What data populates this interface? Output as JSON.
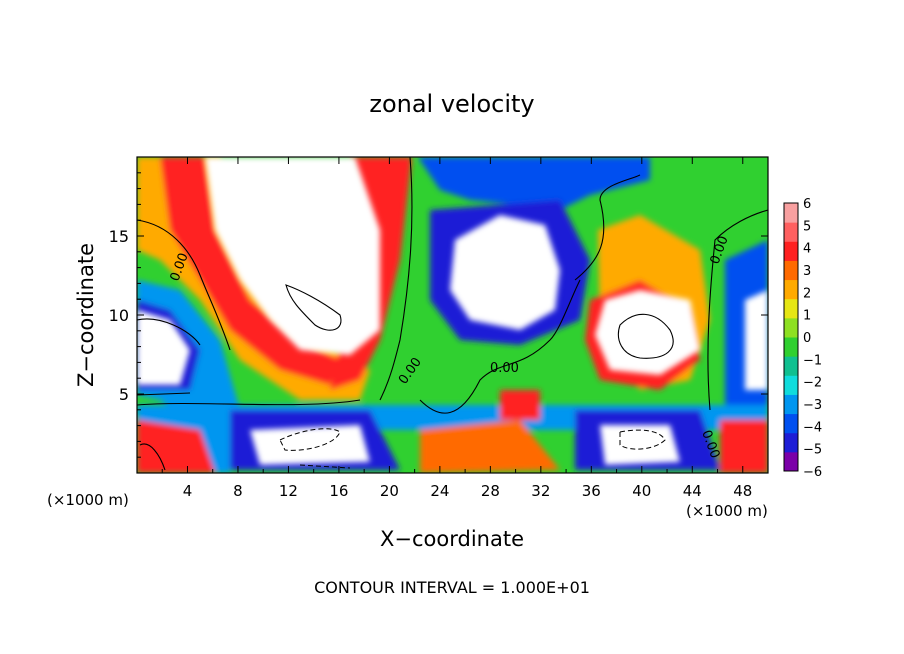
{
  "chart_data": {
    "type": "heatmap",
    "title": "zonal velocity",
    "xlabel": "X−coordinate",
    "ylabel": "Z−coordinate",
    "x_unit_left": "(×1000 m)",
    "x_unit_right": "(×1000 m)",
    "footer": "CONTOUR INTERVAL = 1.000E+01",
    "xlim": [
      0,
      50
    ],
    "ylim": [
      0,
      20
    ],
    "x_ticks": [
      "4",
      "8",
      "12",
      "16",
      "20",
      "24",
      "28",
      "32",
      "36",
      "40",
      "44",
      "48"
    ],
    "y_ticks": [
      "5",
      "10",
      "15"
    ],
    "colorbar": {
      "range": [
        -6,
        6
      ],
      "ticks": [
        "6",
        "5",
        "4",
        "3",
        "2",
        "1",
        "0",
        "−1",
        "−2",
        "−3",
        "−4",
        "−5",
        "−6"
      ],
      "colors": [
        "#7b00a8",
        "#1e1ed6",
        "#0050f0",
        "#0096f0",
        "#10dcdc",
        "#10c090",
        "#30d030",
        "#8ee022",
        "#e6e614",
        "#ffaa00",
        "#ff6a00",
        "#ff2020",
        "#ff6060",
        "#f8a0a0"
      ]
    },
    "contour_labels": [
      "0.00",
      "0.00",
      "0.00",
      "0.00",
      "0.00"
    ]
  }
}
